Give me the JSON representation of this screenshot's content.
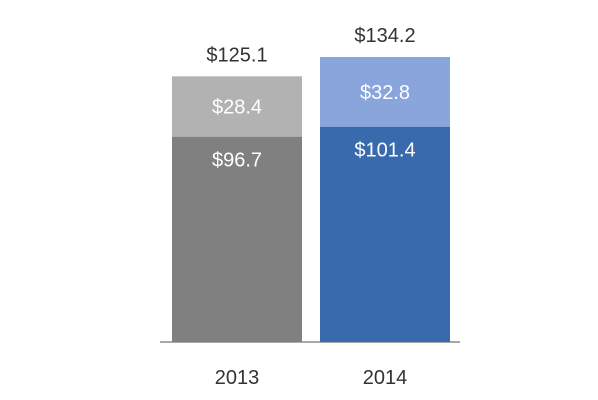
{
  "chart_data": {
    "type": "bar",
    "stacked": true,
    "categories": [
      "2013",
      "2014"
    ],
    "series": [
      {
        "values": [
          96.7,
          101.4
        ],
        "labels": [
          "$96.7",
          "$101.4"
        ],
        "colors": [
          "#808080",
          "#3a6aae"
        ]
      },
      {
        "values": [
          28.4,
          32.8
        ],
        "labels": [
          "$28.4",
          "$32.8"
        ],
        "colors": [
          "#b2b2b2",
          "#8aa4dc"
        ]
      }
    ],
    "totals": [
      125.1,
      134.2
    ],
    "total_labels": [
      "$125.1",
      "$134.2"
    ],
    "title": "",
    "xlabel": "",
    "ylabel": "",
    "ylim": [
      0,
      134.2
    ],
    "grid": false,
    "legend": "none"
  }
}
